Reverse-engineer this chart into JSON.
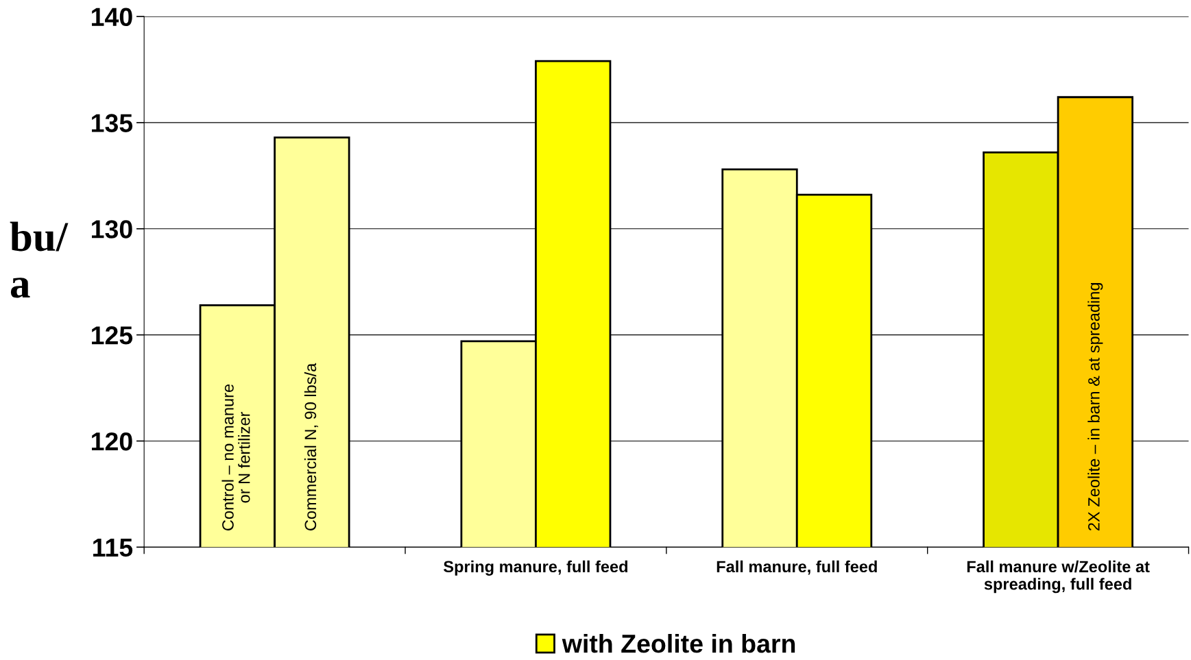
{
  "chart_data": {
    "type": "bar",
    "ylabel": "bu/\na",
    "categories": [
      null,
      "Spring manure, full feed",
      "Fall manure, full feed",
      "Fall manure w/Zeolite at\nspreading, full feed"
    ],
    "series": [
      {
        "colors": [
          "#ffff99",
          "#ffff99",
          "#ffff99",
          "#e6e600"
        ],
        "values": [
          126.4,
          124.7,
          132.8,
          133.6
        ]
      },
      {
        "name": "with Zeolite in barn",
        "color": "#ffff00",
        "colors": [
          "#ffff99",
          "#ffff00",
          "#ffff00",
          "#ffcc00"
        ],
        "values": [
          134.3,
          137.9,
          131.6,
          136.2
        ]
      }
    ],
    "annotations": [
      "Control – no manure\nor N fertilizer",
      "Commercial N, 90 lbs/a",
      "2X Zeolite – in barn & at spreading"
    ],
    "ylim": [
      115,
      140
    ],
    "yticks": [
      115,
      120,
      125,
      130,
      135,
      140
    ],
    "grid": "y",
    "legend": "bottom"
  }
}
